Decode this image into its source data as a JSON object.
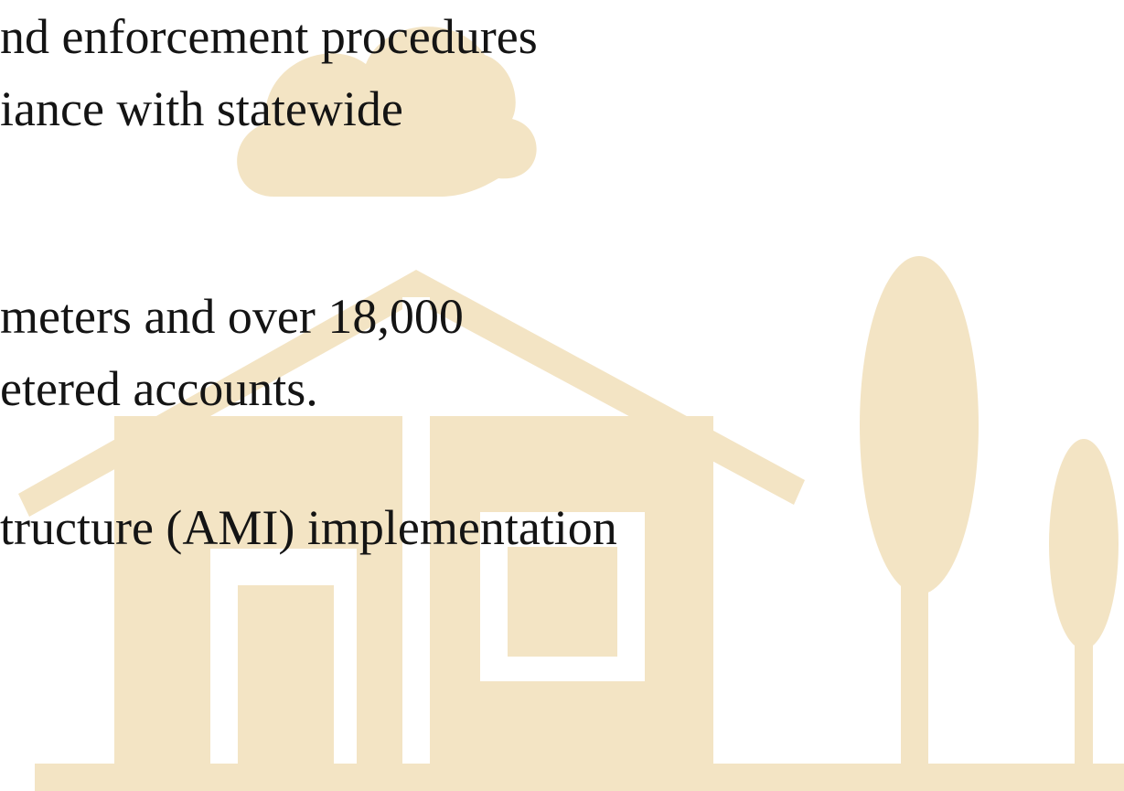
{
  "lines": [
    "nd enforcement procedures",
    "iance with statewide",
    "meters and over 18,000",
    "etered accounts.",
    "tructure (AMI) implementation"
  ]
}
